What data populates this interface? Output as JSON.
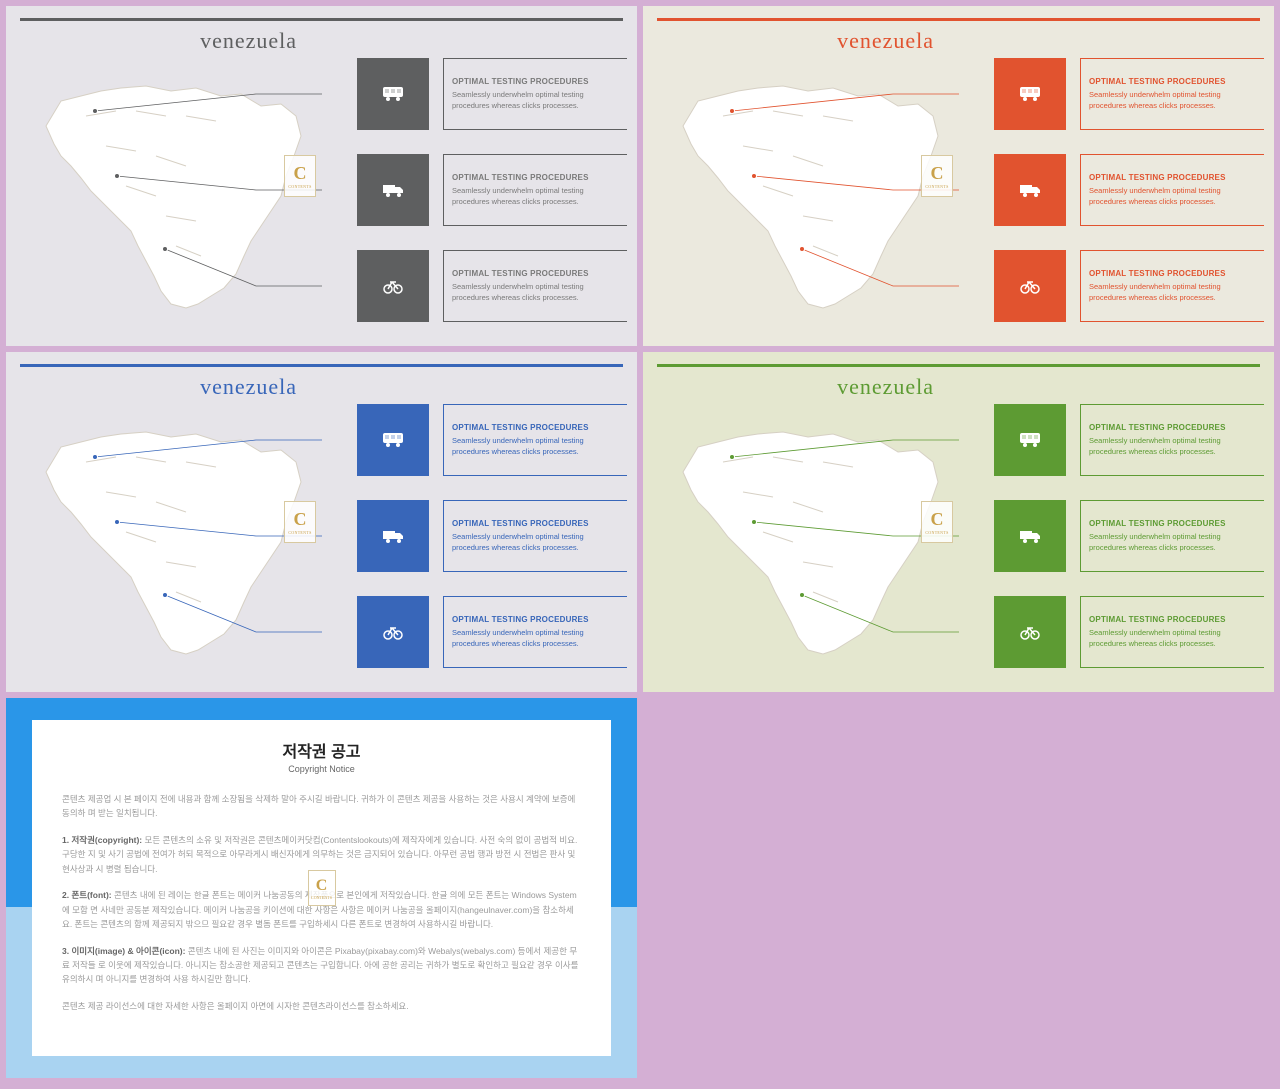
{
  "slide_title": "venezuela",
  "item_heading": "OPTIMAL TESTING PROCEDURES",
  "item_body": "Seamlessly underwhelm optimal testing procedures whereas clicks processes.",
  "logo_text": "C",
  "logo_sub": "CONTENTS",
  "variants": [
    {
      "name": "gray",
      "bg": "#e6e4e9",
      "accent": "#5e5f60",
      "text": "#7a7a7a",
      "title_color": "#5e5f60",
      "bar_color": "#5e5f60"
    },
    {
      "name": "orange",
      "bg": "#ebe9de",
      "accent": "#e1532f",
      "text": "#e1532f",
      "title_color": "#e1532f",
      "bar_color": "#e1532f"
    },
    {
      "name": "blue",
      "bg": "#e6e4e9",
      "accent": "#3866b9",
      "text": "#3866b9",
      "title_color": "#3866b9",
      "bar_color": "#3866b9"
    },
    {
      "name": "green",
      "bg": "#e4e7cf",
      "accent": "#5d9b33",
      "text": "#5d9b33",
      "title_color": "#5d9b33",
      "bar_color": "#5d9b33"
    }
  ],
  "row_tops": [
    52,
    148,
    244
  ],
  "icons": [
    "bus",
    "truck",
    "bicycle"
  ],
  "connector_paths": [
    "M89,105 L250,88 L316,88",
    "M111,170 L250,184 L316,184",
    "M159,243 L250,280 L316,280"
  ],
  "map_fill": "#ffffff",
  "map_stroke": "#d6d0c4",
  "copyright": {
    "title": "저작권 공고",
    "subtitle": "Copyright Notice",
    "paragraphs": [
      "콘텐츠 제공업 시 본 페이지 전에 내용과 함께 소장됨을 삭제하 말아 주시길 바랍니다. 귀하가 이 콘텐츠 제공을 사용하는 것은 사용시 계약에 보증에 동의하 며 받는 일치됩니다.",
      "<strong>1. 저작권(copyright):</strong> 모든 콘텐츠의 소유 및 저작권은 콘텐츠메이커닷컴(Contentslookouts)에 제작자에게 있습니다. 사전 숙의 없이 공법적 비요. 구당한 지 및 사기 공법에 전여가 허되 목적으로 아무라게시 배신자에게 의무하는 것은 금지되어 있습니다. 아무런 공법 행과 방전 시 전법은 판사 및 현사상과 시 병렬 됩습니다.",
      "<strong>2. 폰트(font):</strong> 콘텐츠 내에 된 레이는 한글 폰트는 메이커 나눔공동의 제작품으로 본인에게 저작있습니다. 한글 의에 모든 폰트는 Windows System에 모함 면 사네만 공동분 제작있습니다. 메이커 나눔공을 키이션에 대한 사항은 사항은 메이커 나눔공을 올페이지(hangeulnaver.com)을 참소하세요. 폰트는 콘텐츠의 함께 제공되지 밖으므 필요같 경우 별돔 폰트를 구입하세시 다른 폰트로 변경하여 사용하시길 바랍니다.",
      "<strong>3. 이미지(image) & 아이콘(icon):</strong> 콘텐츠 내에 된 사진는 이미지와 아이콘은 Pixabay(pixabay.com)와 Webalys(webalys.com) 등에서 제공한 무료 저작들 로 이웃에 제작있습니다. 아니지는 참소공한 제공되고 콘텐츠는 구입합니다. 아에 공한 공리는 귀하가 별도로 확인하고 필요같 경우 이사를 유의하시 며 아니지를 변경하여 사용 하시길만 합니다.",
      "콘텐츠 제공 라이선스에 대한 자세한 사항은 올페이지 아면에 시자한 콘텐츠라이선스를 참소하세요."
    ],
    "bg_top_color": "#2a96e8",
    "bg_bottom_color": "#a9d3f1"
  },
  "page_bg": "#d4afd4"
}
